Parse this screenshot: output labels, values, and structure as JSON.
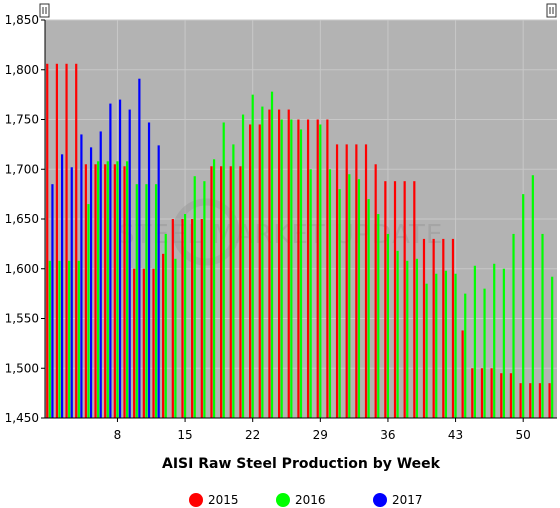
{
  "chart_data": {
    "type": "bar",
    "title": "",
    "xlabel": "AISI Raw Steel Production by Week",
    "ylabel": "",
    "ylim": [
      1450,
      1850
    ],
    "xlim": [
      0.5,
      53.5
    ],
    "y_ticks": [
      1450,
      1500,
      1550,
      1600,
      1650,
      1700,
      1750,
      1800,
      1850
    ],
    "y_tick_labels": [
      "1,450",
      "1,500",
      "1,550",
      "1,600",
      "1,650",
      "1,700",
      "1,750",
      "1,800",
      "1,850"
    ],
    "x_ticks": [
      8,
      15,
      22,
      29,
      36,
      43,
      50
    ],
    "x_tick_labels": [
      "8",
      "15",
      "22",
      "29",
      "36",
      "43",
      "50"
    ],
    "grid": true,
    "legend_position": "bottom",
    "watermark": "STEEL MARKET UPDATE",
    "background_color": "#b3b3b3",
    "series": [
      {
        "name": "2015",
        "color": "#ff0000",
        "x": [
          1,
          2,
          3,
          4,
          5,
          6,
          7,
          8,
          9,
          10,
          11,
          12,
          13,
          14,
          15,
          16,
          17,
          18,
          19,
          20,
          21,
          22,
          23,
          24,
          25,
          26,
          27,
          28,
          29,
          30,
          31,
          32,
          33,
          34,
          35,
          36,
          37,
          38,
          39,
          40,
          41,
          42,
          43,
          44,
          45,
          46,
          47,
          48,
          49,
          50,
          51,
          52,
          53
        ],
        "values": [
          1806,
          1806,
          1806,
          1806,
          1705,
          1705,
          1705,
          1705,
          1703,
          1600,
          1600,
          1600,
          1615,
          1650,
          1650,
          1650,
          1650,
          1703,
          1703,
          1703,
          1703,
          1745,
          1745,
          1760,
          1760,
          1760,
          1750,
          1750,
          1750,
          1750,
          1725,
          1725,
          1725,
          1725,
          1705,
          1688,
          1688,
          1688,
          1688,
          1630,
          1630,
          1630,
          1630,
          1538,
          1500,
          1500,
          1500,
          1495,
          1495,
          1485,
          1485,
          1485,
          1485
        ]
      },
      {
        "name": "2016",
        "color": "#00ff00",
        "x": [
          1,
          2,
          3,
          4,
          5,
          6,
          7,
          8,
          9,
          10,
          11,
          12,
          13,
          14,
          15,
          16,
          17,
          18,
          19,
          20,
          21,
          22,
          23,
          24,
          25,
          26,
          27,
          28,
          29,
          30,
          31,
          32,
          33,
          34,
          35,
          36,
          37,
          38,
          39,
          40,
          41,
          42,
          43,
          44,
          45,
          46,
          47,
          48,
          49,
          50,
          51,
          52,
          53
        ],
        "values": [
          1608,
          1608,
          1608,
          1608,
          1665,
          1708,
          1708,
          1708,
          1708,
          1685,
          1685,
          1685,
          1635,
          1610,
          1655,
          1693,
          1688,
          1710,
          1747,
          1725,
          1755,
          1775,
          1763,
          1778,
          1750,
          1750,
          1740,
          1700,
          1745,
          1700,
          1680,
          1695,
          1690,
          1670,
          1655,
          1635,
          1618,
          1608,
          1610,
          1585,
          1595,
          1598,
          1595,
          1575,
          1603,
          1580,
          1605,
          1600,
          1635,
          1675,
          1694,
          1635,
          1592
        ]
      },
      {
        "name": "2017",
        "color": "#0000ff",
        "x": [
          1,
          2,
          3,
          4,
          5,
          6,
          7,
          8,
          9,
          10,
          11,
          12
        ],
        "values": [
          1685,
          1715,
          1702,
          1735,
          1722,
          1738,
          1766,
          1770,
          1760,
          1791,
          1747,
          1724
        ]
      }
    ]
  }
}
